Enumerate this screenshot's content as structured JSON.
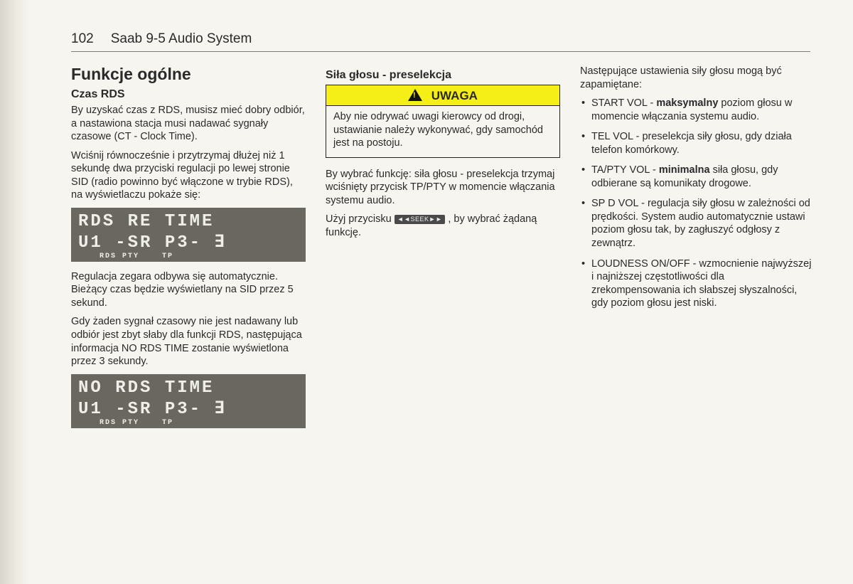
{
  "header": {
    "page_number": "102",
    "title": "Saab 9-5 Audio System"
  },
  "col1": {
    "h1": "Funkcje ogólne",
    "h2": "Czas RDS",
    "p1": "By uzyskać czas z RDS, musisz mieć dobry odbiór, a nastawiona stacja musi nadawać sygnały czasowe (CT - Clock Time).",
    "p2": "Wciśnij równocześnie i przytrzymaj dłużej niż 1 sekundę dwa przyciski regulacji po lewej stronie SID (radio powinno być włączone w trybie RDS), na wyświetlaczu pokaże się:",
    "lcd1": {
      "line1": "RDS RE TIME",
      "line2": "U1 -SR P3- ∃",
      "tiny": "RDS PTY    TP"
    },
    "p3": "Regulacja zegara odbywa się automatycz­nie. Bieżący czas będzie wyświetlany na SID przez 5 sekund.",
    "p4": "Gdy żaden sygnał czasowy nie jest nada­wany lub odbiór jest zbyt słaby dla funkcji RDS, następująca informacja NO RDS TIME zostanie wyświetlona przez 3 sekundy.",
    "lcd2": {
      "line1": "NO RDS TIME",
      "line2": "U1 -SR P3- ∃",
      "tiny": "RDS PTY    TP"
    }
  },
  "col2": {
    "h2": "Siła głosu - preselekcja",
    "warning_label": "UWAGA",
    "warning_body": "Aby nie odrywać uwagi kierowcy od drogi, ustawianie należy wykonywać, gdy samochód jest na postoju.",
    "p1": "By wybrać funkcję: siła głosu - preselekcja trzymaj wciśnięty przycisk TP/PTY w momencie włączania systemu audio.",
    "p2a": "Użyj przycisku ",
    "seek_label": "◄◄SEEK►►",
    "p2b": " , by wybrać żądaną funkcję."
  },
  "col3": {
    "intro": "Następujące ustawienia siły głosu mogą być zapamiętane:",
    "items": [
      {
        "label": "START VOL",
        "emph": "maksymalny",
        "rest": " poziom głosu w momencie włączania systemu audio."
      },
      {
        "label": "TEL VOL",
        "emph": "",
        "rest": " - preselekcja siły głosu, gdy działa telefon komórkowy."
      },
      {
        "label": "TA/PTY VOL",
        "emph": "minimalna",
        "rest": " siła głosu, gdy odbierane są komunikaty drogowe."
      },
      {
        "label": "SP D VOL",
        "emph": "",
        "rest": " - regulacja siły głosu w zależności od prędkości. System audio automatycznie ustawi poziom głosu tak, by zagłuszyć odgłosy z zewnątrz."
      },
      {
        "label": "LOUDNESS ON/OFF",
        "emph": "",
        "rest": " - wzmocnienie najwyższej i najniższej częstotliwości dla zrekompensowania ich słabszej słyszal­ności, gdy poziom głosu jest niski."
      }
    ]
  }
}
